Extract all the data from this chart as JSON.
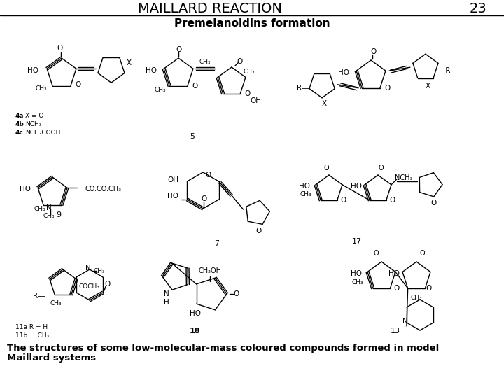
{
  "title": "MAILLARD REACTION",
  "page_number": "23",
  "subtitle": "Premelanoidins formation",
  "footer_line1": "The structures of some low-molecular-mass coloured compounds formed in model",
  "footer_line2": "Maillard systems",
  "bg_color": "#ffffff",
  "title_fontsize": 14,
  "subtitle_fontsize": 11,
  "footer_fontsize": 9.5,
  "page_num_fontsize": 14,
  "line_color": "#000000",
  "lw": 1.0
}
